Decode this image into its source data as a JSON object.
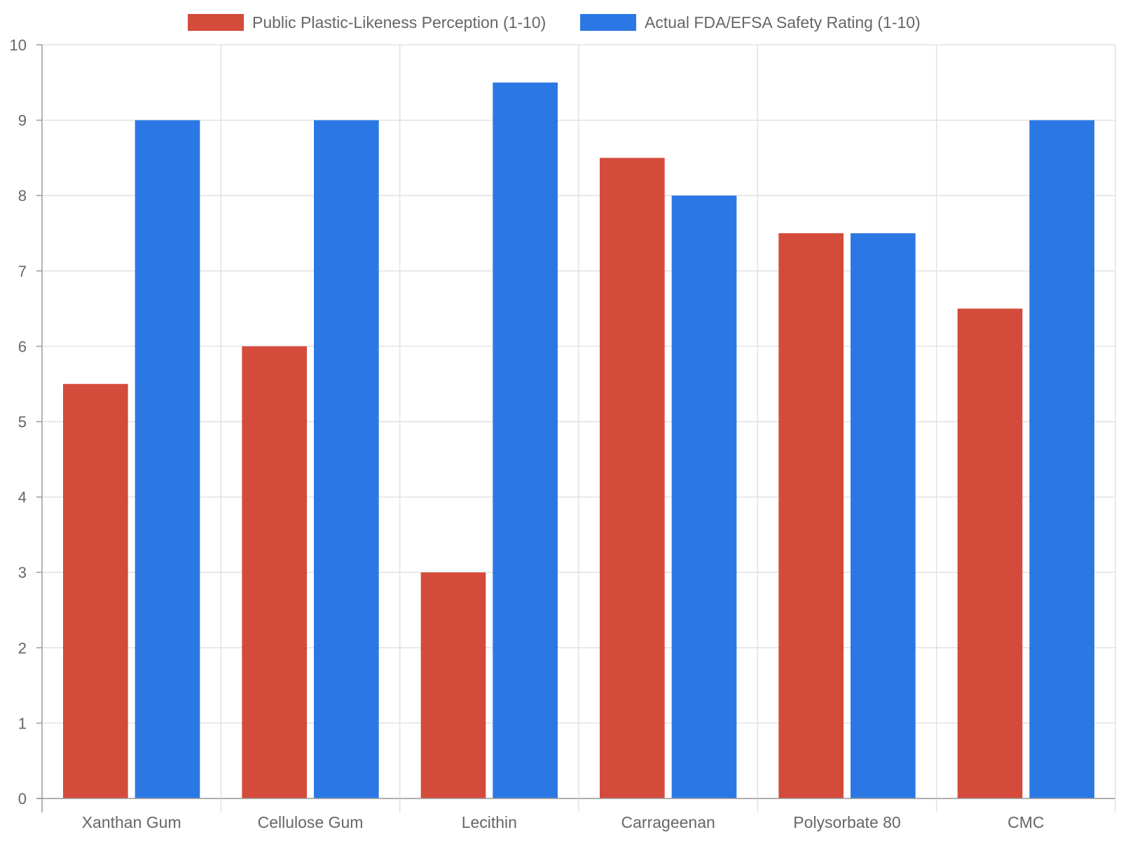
{
  "chart_data": {
    "type": "bar",
    "categories": [
      "Xanthan Gum",
      "Cellulose Gum",
      "Lecithin",
      "Carrageenan",
      "Polysorbate 80",
      "CMC"
    ],
    "series": [
      {
        "name": "Public Plastic-Likeness Perception (1-10)",
        "color": "#d44b3b",
        "values": [
          5.5,
          6,
          3,
          8.5,
          7.5,
          6.5
        ]
      },
      {
        "name": "Actual FDA/EFSA Safety Rating (1-10)",
        "color": "#2b78e4",
        "values": [
          9,
          9,
          9.5,
          8,
          7.5,
          9
        ]
      }
    ],
    "ylim": [
      0,
      10
    ],
    "yticks": [
      "0",
      "1",
      "2",
      "3",
      "4",
      "5",
      "6",
      "7",
      "8",
      "9",
      "10"
    ],
    "xlabel": "",
    "ylabel": "",
    "grid": true,
    "legend_position": "top-center"
  }
}
